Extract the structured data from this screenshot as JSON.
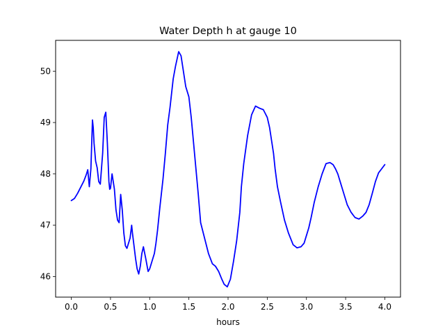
{
  "chart_data": {
    "type": "line",
    "title": "Water Depth h at gauge 10",
    "xlabel": "hours",
    "ylabel": "",
    "xlim": [
      -0.2,
      4.2
    ],
    "ylim": [
      45.6,
      50.6
    ],
    "xticks": [
      0.0,
      0.5,
      1.0,
      1.5,
      2.0,
      2.5,
      3.0,
      3.5,
      4.0
    ],
    "xtick_labels": [
      "0.0",
      "0.5",
      "1.0",
      "1.5",
      "2.0",
      "2.5",
      "3.0",
      "3.5",
      "4.0"
    ],
    "yticks": [
      46,
      47,
      48,
      49,
      50
    ],
    "ytick_labels": [
      "46",
      "47",
      "48",
      "49",
      "50"
    ],
    "grid": false,
    "series": [
      {
        "color": "#0000ff",
        "x": [
          0.0,
          0.04,
          0.08,
          0.12,
          0.16,
          0.19,
          0.21,
          0.23,
          0.25,
          0.27,
          0.28,
          0.29,
          0.31,
          0.33,
          0.35,
          0.37,
          0.4,
          0.42,
          0.44,
          0.46,
          0.48,
          0.49,
          0.5,
          0.52,
          0.55,
          0.57,
          0.59,
          0.61,
          0.63,
          0.65,
          0.67,
          0.69,
          0.71,
          0.73,
          0.75,
          0.77,
          0.78,
          0.8,
          0.82,
          0.84,
          0.86,
          0.88,
          0.9,
          0.92,
          0.95,
          0.98,
          1.0,
          1.02,
          1.04,
          1.06,
          1.08,
          1.1,
          1.13,
          1.17,
          1.2,
          1.23,
          1.26,
          1.3,
          1.33,
          1.37,
          1.4,
          1.43,
          1.46,
          1.5,
          1.53,
          1.56,
          1.59,
          1.62,
          1.65,
          1.7,
          1.75,
          1.8,
          1.84,
          1.88,
          1.92,
          1.95,
          1.99,
          2.03,
          2.07,
          2.11,
          2.15,
          2.17,
          2.2,
          2.25,
          2.3,
          2.35,
          2.4,
          2.45,
          2.5,
          2.53,
          2.55,
          2.58,
          2.6,
          2.63,
          2.67,
          2.72,
          2.77,
          2.83,
          2.88,
          2.93,
          2.97,
          3.0,
          3.03,
          3.06,
          3.1,
          3.15,
          3.2,
          3.25,
          3.3,
          3.34,
          3.37,
          3.4,
          3.43,
          3.47,
          3.52,
          3.57,
          3.62,
          3.67,
          3.72,
          3.76,
          3.8,
          3.84,
          3.88,
          3.92,
          3.96,
          4.0
        ],
        "values": [
          47.48,
          47.52,
          47.62,
          47.74,
          47.86,
          47.98,
          48.08,
          47.75,
          48.1,
          49.05,
          48.9,
          48.6,
          48.25,
          48.12,
          47.85,
          47.8,
          48.4,
          49.1,
          49.2,
          48.6,
          47.85,
          47.7,
          47.72,
          48.0,
          47.7,
          47.3,
          47.1,
          47.05,
          47.6,
          47.3,
          46.85,
          46.6,
          46.55,
          46.65,
          46.75,
          47.0,
          46.85,
          46.6,
          46.35,
          46.15,
          46.05,
          46.2,
          46.45,
          46.58,
          46.35,
          46.1,
          46.15,
          46.25,
          46.35,
          46.45,
          46.65,
          46.9,
          47.35,
          47.9,
          48.4,
          48.95,
          49.3,
          49.85,
          50.1,
          50.38,
          50.3,
          50.0,
          49.7,
          49.5,
          49.1,
          48.6,
          48.1,
          47.6,
          47.05,
          46.75,
          46.45,
          46.25,
          46.2,
          46.1,
          45.95,
          45.85,
          45.8,
          45.95,
          46.3,
          46.7,
          47.25,
          47.75,
          48.2,
          48.75,
          49.15,
          49.32,
          49.28,
          49.25,
          49.1,
          48.9,
          48.7,
          48.4,
          48.1,
          47.75,
          47.45,
          47.1,
          46.85,
          46.62,
          46.56,
          46.58,
          46.65,
          46.8,
          46.95,
          47.15,
          47.45,
          47.75,
          48.0,
          48.2,
          48.22,
          48.18,
          48.1,
          48.0,
          47.85,
          47.65,
          47.4,
          47.25,
          47.15,
          47.12,
          47.18,
          47.25,
          47.4,
          47.62,
          47.85,
          48.02,
          48.1,
          48.18
        ]
      }
    ]
  }
}
